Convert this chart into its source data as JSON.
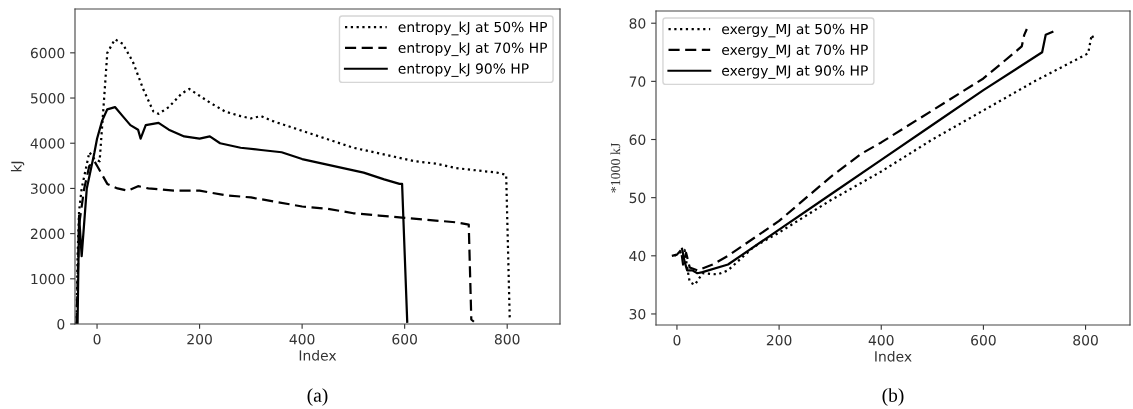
{
  "chart_data": [
    {
      "type": "line",
      "xlabel": "Index",
      "ylabel": "kJ",
      "xlim": [
        -43,
        903
      ],
      "ylim": [
        0,
        6970
      ],
      "xticks": [
        0,
        200,
        400,
        600,
        800
      ],
      "yticks": [
        0,
        1000,
        2000,
        3000,
        4000,
        5000,
        6000
      ],
      "grid": false,
      "legend": "top right",
      "annotations": [
        "(a)"
      ],
      "series": [
        {
          "name": "entropy_kJ at 50% HP",
          "color": "#000000",
          "line_style": "dotted",
          "x": [
            -40,
            -38,
            -35,
            -30,
            -15,
            -5,
            5,
            12,
            20,
            35,
            50,
            70,
            90,
            110,
            120,
            140,
            165,
            180,
            200,
            220,
            250,
            280,
            300,
            320,
            340,
            380,
            420,
            460,
            500,
            540,
            580,
            620,
            660,
            700,
            740,
            780,
            798,
            805
          ],
          "values": [
            0,
            1500,
            2500,
            3000,
            3800,
            3650,
            3600,
            4700,
            6000,
            6300,
            6200,
            5800,
            5200,
            4700,
            4650,
            4800,
            5100,
            5200,
            5050,
            4900,
            4700,
            4600,
            4550,
            4600,
            4500,
            4350,
            4200,
            4050,
            3900,
            3800,
            3700,
            3600,
            3550,
            3450,
            3400,
            3350,
            3300,
            100
          ]
        },
        {
          "name": "entropy_kJ at 70% HP",
          "color": "#000000",
          "line_style": "dashed",
          "x": [
            -40,
            -35,
            -25,
            -15,
            -5,
            0,
            10,
            20,
            40,
            60,
            80,
            100,
            150,
            200,
            250,
            300,
            350,
            400,
            450,
            500,
            550,
            600,
            650,
            700,
            725,
            730,
            735
          ],
          "values": [
            0,
            2200,
            3000,
            3500,
            3600,
            3500,
            3300,
            3100,
            3000,
            2950,
            3050,
            3000,
            2950,
            2950,
            2850,
            2800,
            2700,
            2600,
            2550,
            2450,
            2400,
            2350,
            2300,
            2250,
            2200,
            100,
            50
          ]
        },
        {
          "name": "entropy_kJ 90% HP",
          "color": "#000000",
          "line_style": "solid",
          "x": [
            -38,
            -35,
            -30,
            -20,
            -5,
            0,
            10,
            20,
            35,
            50,
            65,
            80,
            85,
            95,
            120,
            140,
            170,
            200,
            220,
            240,
            280,
            320,
            360,
            400,
            440,
            480,
            520,
            560,
            590,
            595,
            605
          ],
          "values": [
            0,
            2400,
            1500,
            3000,
            3800,
            4100,
            4500,
            4750,
            4800,
            4600,
            4400,
            4300,
            4100,
            4400,
            4450,
            4300,
            4150,
            4100,
            4150,
            4000,
            3900,
            3850,
            3800,
            3650,
            3550,
            3450,
            3350,
            3200,
            3100,
            3100,
            50
          ]
        }
      ]
    },
    {
      "type": "line",
      "xlabel": "Index",
      "ylabel": "*1000 kJ",
      "xlim": [
        -41,
        887
      ],
      "ylim": [
        28.1,
        82.1
      ],
      "xticks": [
        0,
        200,
        400,
        600,
        800
      ],
      "yticks": [
        30,
        40,
        50,
        60,
        70,
        80
      ],
      "grid": false,
      "legend": "top left",
      "annotations": [
        "(b)"
      ],
      "series": [
        {
          "name": "exergy_MJ at 50% HP",
          "color": "#000000",
          "line_style": "dotted",
          "x": [
            -5,
            5,
            15,
            20,
            25,
            35,
            50,
            80,
            100,
            150,
            200,
            300,
            400,
            500,
            600,
            700,
            805,
            812,
            818
          ],
          "values": [
            40,
            40.5,
            41,
            38,
            35.5,
            35,
            37,
            36.8,
            37.5,
            41.5,
            44,
            49.5,
            54.5,
            60,
            65,
            70,
            74.8,
            78,
            77
          ]
        },
        {
          "name": "exergy_MJ at 70% HP",
          "color": "#000000",
          "line_style": "dashed",
          "x": [
            -10,
            0,
            8,
            12,
            18,
            25,
            40,
            70,
            100,
            200,
            300,
            360,
            400,
            500,
            600,
            675,
            680,
            685
          ],
          "values": [
            40,
            40.2,
            41,
            38.5,
            40.5,
            38,
            37.5,
            38.5,
            40,
            46,
            53.5,
            57.5,
            59.5,
            65,
            70.5,
            76,
            78,
            79
          ]
        },
        {
          "name": "exergy_MJ at 90% HP",
          "color": "#000000",
          "line_style": "solid",
          "x": [
            10,
            15,
            20,
            30,
            40,
            50,
            100,
            200,
            300,
            400,
            500,
            600,
            715,
            722,
            735
          ],
          "values": [
            41.2,
            39,
            37.5,
            37.5,
            37,
            37.2,
            38.5,
            44.5,
            50.5,
            56.5,
            62.5,
            68.5,
            75,
            78,
            78.5
          ]
        }
      ]
    }
  ]
}
